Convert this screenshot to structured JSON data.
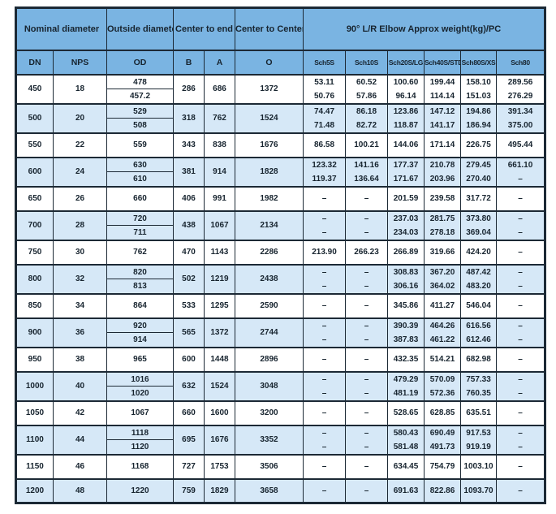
{
  "colors": {
    "border": "#1c2935",
    "header_bg": "#7ab4e2",
    "stripe_bg": "#d6e8f7",
    "text": "#17242f"
  },
  "table": {
    "header_groups": [
      {
        "label": "Nominal diameter"
      },
      {
        "label": "Outside diameter"
      },
      {
        "label": "Center to end"
      },
      {
        "label": "Center to Center"
      },
      {
        "label": "90° L/R Elbow Approx weight(kg)/PC"
      }
    ],
    "columns": [
      "DN",
      "NPS",
      "OD",
      "B",
      "A",
      "O",
      "Sch5S",
      "Sch10S",
      "Sch20S/LG",
      "Sch40S/STD",
      "Sch80S/XS",
      "Sch80"
    ],
    "rows": [
      {
        "dn": "450",
        "nps": "18",
        "od": [
          "478",
          "457.2"
        ],
        "b": "286",
        "a": "686",
        "o": "1372",
        "weights": [
          [
            "53.11",
            "60.52",
            "100.60",
            "199.44",
            "158.10",
            "289.56"
          ],
          [
            "50.76",
            "57.86",
            "96.14",
            "114.14",
            "151.03",
            "276.29"
          ]
        ]
      },
      {
        "dn": "500",
        "nps": "20",
        "od": [
          "529",
          "508"
        ],
        "b": "318",
        "a": "762",
        "o": "1524",
        "weights": [
          [
            "74.47",
            "86.18",
            "123.86",
            "147.12",
            "194.86",
            "391.34"
          ],
          [
            "71.48",
            "82.72",
            "118.87",
            "141.17",
            "186.94",
            "375.00"
          ]
        ]
      },
      {
        "dn": "550",
        "nps": "22",
        "od": [
          "559"
        ],
        "b": "343",
        "a": "838",
        "o": "1676",
        "weights": [
          [
            "86.58",
            "100.21",
            "144.06",
            "171.14",
            "226.75",
            "495.44"
          ]
        ]
      },
      {
        "dn": "600",
        "nps": "24",
        "od": [
          "630",
          "610"
        ],
        "b": "381",
        "a": "914",
        "o": "1828",
        "weights": [
          [
            "123.32",
            "141.16",
            "177.37",
            "210.78",
            "279.45",
            "661.10"
          ],
          [
            "119.37",
            "136.64",
            "171.67",
            "203.96",
            "270.40",
            "–"
          ]
        ]
      },
      {
        "dn": "650",
        "nps": "26",
        "od": [
          "660"
        ],
        "b": "406",
        "a": "991",
        "o": "1982",
        "weights": [
          [
            "–",
            "–",
            "201.59",
            "239.58",
            "317.72",
            "–"
          ]
        ]
      },
      {
        "dn": "700",
        "nps": "28",
        "od": [
          "720",
          "711"
        ],
        "b": "438",
        "a": "1067",
        "o": "2134",
        "weights": [
          [
            "–",
            "–",
            "237.03",
            "281.75",
            "373.80",
            "–"
          ],
          [
            "–",
            "–",
            "234.03",
            "278.18",
            "369.04",
            "–"
          ]
        ]
      },
      {
        "dn": "750",
        "nps": "30",
        "od": [
          "762"
        ],
        "b": "470",
        "a": "1143",
        "o": "2286",
        "weights": [
          [
            "213.90",
            "266.23",
            "266.89",
            "319.66",
            "424.20",
            "–"
          ]
        ]
      },
      {
        "dn": "800",
        "nps": "32",
        "od": [
          "820",
          "813"
        ],
        "b": "502",
        "a": "1219",
        "o": "2438",
        "weights": [
          [
            "–",
            "–",
            "308.83",
            "367.20",
            "487.42",
            "–"
          ],
          [
            "–",
            "–",
            "306.16",
            "364.02",
            "483.20",
            "–"
          ]
        ]
      },
      {
        "dn": "850",
        "nps": "34",
        "od": [
          "864"
        ],
        "b": "533",
        "a": "1295",
        "o": "2590",
        "weights": [
          [
            "–",
            "–",
            "345.86",
            "411.27",
            "546.04",
            "–"
          ]
        ]
      },
      {
        "dn": "900",
        "nps": "36",
        "od": [
          "920",
          "914"
        ],
        "b": "565",
        "a": "1372",
        "o": "2744",
        "weights": [
          [
            "–",
            "–",
            "390.39",
            "464.26",
            "616.56",
            "–"
          ],
          [
            "–",
            "–",
            "387.83",
            "461.22",
            "612.46",
            "–"
          ]
        ]
      },
      {
        "dn": "950",
        "nps": "38",
        "od": [
          "965"
        ],
        "b": "600",
        "a": "1448",
        "o": "2896",
        "weights": [
          [
            "–",
            "–",
            "432.35",
            "514.21",
            "682.98",
            "–"
          ]
        ]
      },
      {
        "dn": "1000",
        "nps": "40",
        "od": [
          "1016",
          "1020"
        ],
        "b": "632",
        "a": "1524",
        "o": "3048",
        "weights": [
          [
            "–",
            "–",
            "479.29",
            "570.09",
            "757.33",
            "–"
          ],
          [
            "–",
            "–",
            "481.19",
            "572.36",
            "760.35",
            "–"
          ]
        ]
      },
      {
        "dn": "1050",
        "nps": "42",
        "od": [
          "1067"
        ],
        "b": "660",
        "a": "1600",
        "o": "3200",
        "weights": [
          [
            "–",
            "–",
            "528.65",
            "628.85",
            "635.51",
            "–"
          ]
        ]
      },
      {
        "dn": "1100",
        "nps": "44",
        "od": [
          "1118",
          "1120"
        ],
        "b": "695",
        "a": "1676",
        "o": "3352",
        "weights": [
          [
            "–",
            "–",
            "580.43",
            "690.49",
            "917.53",
            "–"
          ],
          [
            "–",
            "–",
            "581.48",
            "491.73",
            "919.19",
            "–"
          ]
        ]
      },
      {
        "dn": "1150",
        "nps": "46",
        "od": [
          "1168"
        ],
        "b": "727",
        "a": "1753",
        "o": "3506",
        "weights": [
          [
            "–",
            "–",
            "634.45",
            "754.79",
            "1003.10",
            "–"
          ]
        ]
      },
      {
        "dn": "1200",
        "nps": "48",
        "od": [
          "1220"
        ],
        "b": "759",
        "a": "1829",
        "o": "3658",
        "weights": [
          [
            "–",
            "–",
            "691.63",
            "822.86",
            "1093.70",
            "–"
          ]
        ]
      }
    ]
  }
}
